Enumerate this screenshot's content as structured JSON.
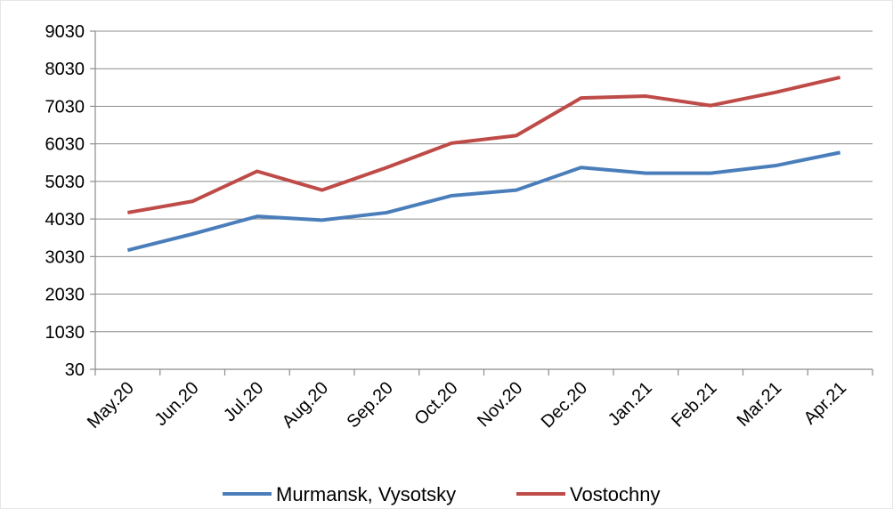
{
  "chart_data": {
    "type": "line",
    "categories": [
      "May.20",
      "Jun.20",
      "Jul.20",
      "Aug.20",
      "Sep.20",
      "Oct.20",
      "Nov.20",
      "Dec.20",
      "Jan.21",
      "Feb.21",
      "Mar.21",
      "Apr.21"
    ],
    "series": [
      {
        "name": "Murmansk, Vysotsky",
        "color": "#4a7ebb",
        "values": [
          3200,
          3630,
          4100,
          4000,
          4200,
          4650,
          4800,
          5400,
          5250,
          5250,
          5450,
          5800
        ]
      },
      {
        "name": "Vostochny",
        "color": "#be4b48",
        "values": [
          4200,
          4500,
          5300,
          4800,
          5400,
          6050,
          6250,
          7250,
          7300,
          7050,
          7400,
          7800
        ]
      }
    ],
    "ylim": [
      30,
      9030
    ],
    "yticks": [
      30,
      1030,
      2030,
      3030,
      4030,
      5030,
      6030,
      7030,
      8030,
      9030
    ],
    "grid": true,
    "legend": "bottom"
  }
}
